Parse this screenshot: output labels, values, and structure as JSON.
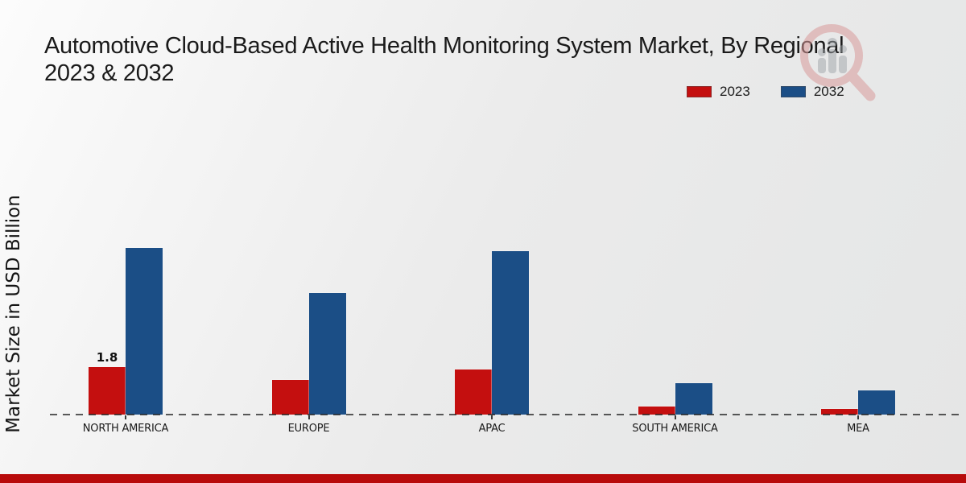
{
  "title": {
    "line1": "Automotive Cloud-Based Active Health Monitoring System Market, By Regional",
    "line2": "2023 & 2032"
  },
  "y_axis_label": "Market Size in USD Billion",
  "legend": {
    "items": [
      {
        "label": "2023",
        "color": "#c40f0f"
      },
      {
        "label": "2032",
        "color": "#1b4e86"
      }
    ]
  },
  "colors": {
    "series_2023": "#c40f0f",
    "series_2032": "#1b4e86",
    "footer_strip": "#b80b0b",
    "background": "#ebebeb",
    "baseline": "#2a2a2a"
  },
  "watermark": {
    "name": "market-research-magnifier-logo"
  },
  "chart_data": {
    "type": "bar",
    "title": "Automotive Cloud-Based Active Health Monitoring System Market, By Regional 2023 & 2032",
    "categories": [
      "NORTH AMERICA",
      "EUROPE",
      "APAC",
      "SOUTH AMERICA",
      "MEA"
    ],
    "series": [
      {
        "name": "2023",
        "color": "#c40f0f",
        "values": [
          1.8,
          1.3,
          1.7,
          0.3,
          0.2
        ]
      },
      {
        "name": "2032",
        "color": "#1b4e86",
        "values": [
          6.3,
          4.6,
          6.2,
          1.2,
          0.9
        ]
      }
    ],
    "value_labels": [
      {
        "series_index": 0,
        "category_index": 0,
        "text": "1.8"
      }
    ],
    "xlabel": "",
    "ylabel": "Market Size in USD Billion",
    "ylim": [
      0,
      7
    ],
    "grid": false,
    "axis_line_style": "dashed-baseline-only",
    "legend_position": "top-right"
  }
}
